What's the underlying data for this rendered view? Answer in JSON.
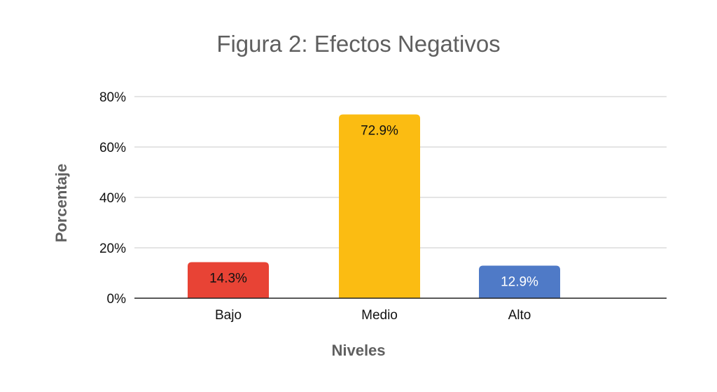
{
  "chart_data": {
    "type": "bar",
    "title": "Figura 2: Efectos Negativos",
    "xlabel": "Niveles",
    "ylabel": "Porcentaje",
    "categories": [
      "Bajo",
      "Medio",
      "Alto"
    ],
    "values": [
      14.3,
      72.9,
      12.9
    ],
    "data_labels": [
      "14.3%",
      "72.9%",
      "12.9%"
    ],
    "colors": [
      "#e84335",
      "#fbbc12",
      "#4f7ac7"
    ],
    "label_colors": [
      "#111111",
      "#111111",
      "#ffffff"
    ],
    "ylim": [
      0,
      80
    ],
    "yticks": [
      0,
      20,
      40,
      60,
      80
    ],
    "ytick_labels": [
      "0%",
      "20%",
      "40%",
      "60%",
      "80%"
    ],
    "grid": true,
    "legend": "none"
  }
}
